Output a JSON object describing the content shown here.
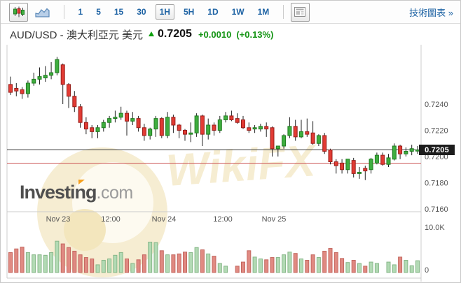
{
  "toolbar": {
    "chart_type": [
      {
        "name": "candlestick",
        "selected": true
      },
      {
        "name": "line-area",
        "selected": false
      }
    ],
    "timeframes": [
      {
        "label": "1",
        "selected": false
      },
      {
        "label": "5",
        "selected": false
      },
      {
        "label": "15",
        "selected": false
      },
      {
        "label": "30",
        "selected": false
      },
      {
        "label": "1H",
        "selected": true
      },
      {
        "label": "5H",
        "selected": false
      },
      {
        "label": "1D",
        "selected": false
      },
      {
        "label": "1W",
        "selected": false
      },
      {
        "label": "1M",
        "selected": false
      }
    ],
    "news_button_icon": "news-panel-icon",
    "link_label": "技術圖表 »"
  },
  "header": {
    "symbol": "AUD/USD - 澳大利亞元 美元",
    "direction": "up",
    "price": "0.7205",
    "change": "+0.0010",
    "change_pct": "(+0.13%)"
  },
  "watermark": {
    "text": "WikiFX",
    "brand_main": "Investing",
    "brand_suffix": ".com"
  },
  "colors": {
    "up_fill": "#3fae3f",
    "up_stroke": "#1f7a1f",
    "down_fill": "#e23b34",
    "down_stroke": "#971f1a",
    "wick": "#222222",
    "vol_up_fill": "#b2dab4",
    "vol_up_stroke": "#85b687",
    "vol_down_fill": "#e08a82",
    "vol_down_stroke": "#c4675f",
    "last_price_line": "#333333",
    "level_line": "#cc5555",
    "axis_text": "#555555",
    "pane_border": "#cccccc",
    "badge_bg": "#1c1c1c",
    "watermark_cream": "#f6edd2",
    "link_blue": "#1e63a4",
    "change_green": "#149414"
  },
  "chart_data": {
    "type": "candlestick",
    "symbol": "AUD/USD",
    "timeframe": "1H",
    "grid": false,
    "ylim": [
      0.7155,
      0.7285
    ],
    "volume_max_k": 10.0,
    "current_price": 0.7205,
    "current_price_label": "0.7205",
    "black_line_price": 0.7205,
    "red_line_price": 0.7195,
    "x_start": 14,
    "x_step": 8.3,
    "x_ticks": [
      {
        "label": "Nov 23",
        "x": 82
      },
      {
        "label": "12:00",
        "x": 157
      },
      {
        "label": "Nov 24",
        "x": 233
      },
      {
        "label": "12:00",
        "x": 317
      },
      {
        "label": "Nov 25",
        "x": 390
      }
    ],
    "y_ticks": [
      {
        "label": "0.7240",
        "price": 0.724
      },
      {
        "label": "0.7220",
        "price": 0.722
      },
      {
        "label": "0.7200",
        "price": 0.72
      },
      {
        "label": "0.7180",
        "price": 0.718
      },
      {
        "label": "0.7160",
        "price": 0.716
      }
    ],
    "volume_ticks": [
      {
        "label": "10.0K",
        "value": 10.0
      },
      {
        "label": "0",
        "value": 0
      }
    ],
    "candles": [
      [
        0.7255,
        0.7261,
        0.7247,
        0.7249
      ],
      [
        0.7252,
        0.7256,
        0.7246,
        0.725
      ],
      [
        0.7251,
        0.7253,
        0.7244,
        0.7248
      ],
      [
        0.7248,
        0.7258,
        0.7245,
        0.7256
      ],
      [
        0.7256,
        0.7264,
        0.7254,
        0.7259
      ],
      [
        0.7259,
        0.7268,
        0.7255,
        0.7261
      ],
      [
        0.726,
        0.7269,
        0.7257,
        0.7262
      ],
      [
        0.7262,
        0.7272,
        0.7259,
        0.7264
      ],
      [
        0.7264,
        0.7276,
        0.7262,
        0.7274
      ],
      [
        0.727,
        0.7271,
        0.724,
        0.7255
      ],
      [
        0.7255,
        0.7256,
        0.7237,
        0.7246
      ],
      [
        0.7246,
        0.725,
        0.7234,
        0.7238
      ],
      [
        0.7238,
        0.724,
        0.7222,
        0.7226
      ],
      [
        0.7226,
        0.723,
        0.7217,
        0.7221
      ],
      [
        0.7222,
        0.7224,
        0.7214,
        0.7219
      ],
      [
        0.7219,
        0.7224,
        0.7214,
        0.7222
      ],
      [
        0.7222,
        0.7228,
        0.7219,
        0.7226
      ],
      [
        0.7226,
        0.7231,
        0.7222,
        0.7229
      ],
      [
        0.7229,
        0.7235,
        0.7226,
        0.723
      ],
      [
        0.723,
        0.7238,
        0.7228,
        0.7233
      ],
      [
        0.7233,
        0.7235,
        0.7216,
        0.7227
      ],
      [
        0.7227,
        0.7234,
        0.7224,
        0.7229
      ],
      [
        0.7229,
        0.7231,
        0.7219,
        0.7222
      ],
      [
        0.7222,
        0.7225,
        0.7212,
        0.7216
      ],
      [
        0.7216,
        0.7222,
        0.7213,
        0.7221
      ],
      [
        0.7221,
        0.7231,
        0.7215,
        0.7229
      ],
      [
        0.7229,
        0.723,
        0.7214,
        0.7216
      ],
      [
        0.7216,
        0.7234,
        0.7214,
        0.723
      ],
      [
        0.723,
        0.7232,
        0.7218,
        0.7224
      ],
      [
        0.7224,
        0.7225,
        0.7214,
        0.722
      ],
      [
        0.722,
        0.7221,
        0.7212,
        0.7217
      ],
      [
        0.7217,
        0.7226,
        0.7211,
        0.7218
      ],
      [
        0.7218,
        0.7233,
        0.7215,
        0.7231
      ],
      [
        0.7231,
        0.7232,
        0.7208,
        0.7217
      ],
      [
        0.7217,
        0.7229,
        0.7213,
        0.7224
      ],
      [
        0.7224,
        0.7226,
        0.7216,
        0.722
      ],
      [
        0.722,
        0.7231,
        0.7218,
        0.7228
      ],
      [
        0.7228,
        0.7234,
        0.7226,
        0.7231
      ],
      [
        0.7231,
        0.7235,
        0.7227,
        0.7228
      ],
      [
        0.7229,
        0.7233,
        0.7225,
        0.7226
      ],
      [
        0.7228,
        0.7231,
        0.7221,
        0.7222
      ],
      [
        0.7222,
        0.7226,
        0.7218,
        0.722
      ],
      [
        0.7221,
        0.7224,
        0.7218,
        0.7222
      ],
      [
        0.7221,
        0.7225,
        0.7219,
        0.7223
      ],
      [
        0.7223,
        0.7226,
        0.7215,
        0.7221
      ],
      [
        0.7222,
        0.7223,
        0.72,
        0.7206
      ],
      [
        0.7206,
        0.7208,
        0.72,
        0.7208
      ],
      [
        0.7208,
        0.7217,
        0.7206,
        0.7216
      ],
      [
        0.7216,
        0.723,
        0.7214,
        0.7223
      ],
      [
        0.7223,
        0.7228,
        0.7212,
        0.7215
      ],
      [
        0.7215,
        0.7228,
        0.7214,
        0.7219
      ],
      [
        0.7219,
        0.7229,
        0.7215,
        0.7217
      ],
      [
        0.7218,
        0.7227,
        0.7209,
        0.721
      ],
      [
        0.721,
        0.7217,
        0.7208,
        0.7216
      ],
      [
        0.7216,
        0.7218,
        0.7202,
        0.7204
      ],
      [
        0.7205,
        0.7206,
        0.7194,
        0.7196
      ],
      [
        0.7196,
        0.7198,
        0.7187,
        0.7193
      ],
      [
        0.7195,
        0.7198,
        0.7187,
        0.719
      ],
      [
        0.719,
        0.7198,
        0.7187,
        0.7198
      ],
      [
        0.7197,
        0.7199,
        0.7184,
        0.7187
      ],
      [
        0.7187,
        0.7192,
        0.7183,
        0.7188
      ],
      [
        0.7191,
        0.7193,
        0.7182,
        0.7189
      ],
      [
        0.719,
        0.7199,
        0.7187,
        0.7198
      ],
      [
        0.7195,
        0.7203,
        0.7194,
        0.7201
      ],
      [
        0.7201,
        0.7203,
        0.7193,
        0.7194
      ],
      [
        0.7194,
        0.7202,
        0.7192,
        0.7199
      ],
      [
        0.7198,
        0.721,
        0.7197,
        0.7208
      ],
      [
        0.7208,
        0.7209,
        0.7198,
        0.7202
      ],
      [
        0.7202,
        0.7207,
        0.72,
        0.7204
      ],
      [
        0.7204,
        0.7209,
        0.7201,
        0.7206
      ],
      [
        0.7205,
        0.7208,
        0.7202,
        0.7205
      ]
    ],
    "volumes_k": [
      4.4,
      5.2,
      5.6,
      4.4,
      3.9,
      3.9,
      3.8,
      4.4,
      6.9,
      6.3,
      5.5,
      4.7,
      3.9,
      3.3,
      3.0,
      1.7,
      2.7,
      3.0,
      3.8,
      4.4,
      3.0,
      2.0,
      2.8,
      3.9,
      6.7,
      6.6,
      4.8,
      3.9,
      3.9,
      4.1,
      4.5,
      4.4,
      5.5,
      5.0,
      4.1,
      3.6,
      2.0,
      1.4,
      0.3,
      1.4,
      2.3,
      4.8,
      3.4,
      3.0,
      2.8,
      3.3,
      3.3,
      3.9,
      4.5,
      4.2,
      3.0,
      2.7,
      3.9,
      3.3,
      4.7,
      5.3,
      4.4,
      3.1,
      2.2,
      2.7,
      2.0,
      1.4,
      2.3,
      2.0,
      0.3,
      2.3,
      1.7,
      3.4,
      2.7,
      1.5,
      2.6
    ]
  }
}
